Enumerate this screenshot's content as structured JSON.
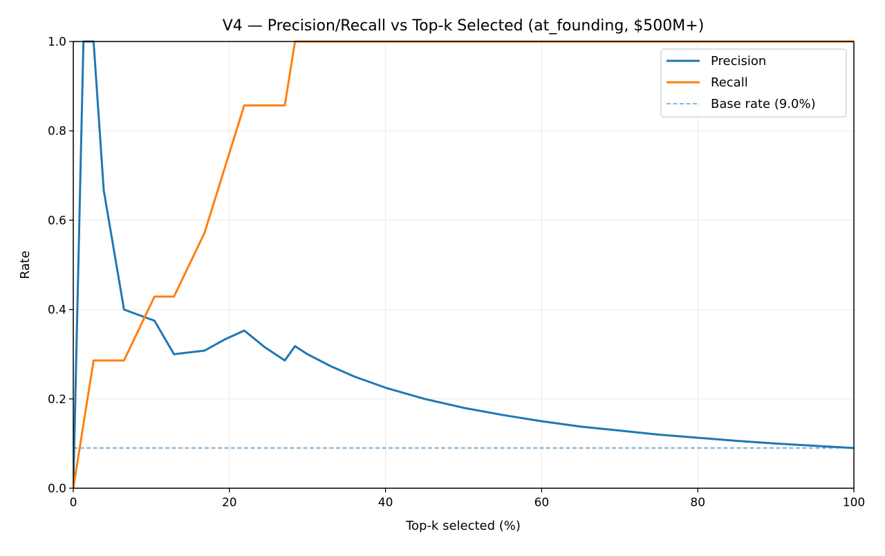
{
  "chart_data": {
    "type": "line",
    "title": "V4 — Precision/Recall vs Top-k Selected (at_founding, $500M+)",
    "xlabel": "Top-k selected (%)",
    "ylabel": "Rate",
    "xlim": [
      0,
      100
    ],
    "ylim": [
      0,
      1.0
    ],
    "xticks": [
      0,
      20,
      40,
      60,
      80,
      100
    ],
    "xtick_labels": [
      "0",
      "20",
      "40",
      "60",
      "80",
      "100"
    ],
    "yticks": [
      0.0,
      0.2,
      0.4,
      0.6,
      0.8,
      1.0
    ],
    "ytick_labels": [
      "0.0",
      "0.2",
      "0.4",
      "0.6",
      "0.8",
      "1.0"
    ],
    "grid": true,
    "legend_position": "upper right",
    "series": [
      {
        "name": "Precision",
        "color": "#1f77b4",
        "style": "solid",
        "x": [
          0,
          1.3,
          2.6,
          3.9,
          6.5,
          10.4,
          12.9,
          16.8,
          19.4,
          21.9,
          24.5,
          27.1,
          28.4,
          30,
          33,
          36,
          40,
          45,
          50,
          55,
          60,
          65,
          70,
          75,
          80,
          85,
          90,
          95,
          100
        ],
        "values": [
          0.0,
          1.0,
          1.0,
          0.667,
          0.4,
          0.375,
          0.3,
          0.308,
          0.333,
          0.353,
          0.316,
          0.286,
          0.318,
          0.3,
          0.273,
          0.25,
          0.225,
          0.2,
          0.18,
          0.164,
          0.15,
          0.138,
          0.129,
          0.12,
          0.113,
          0.106,
          0.1,
          0.095,
          0.09
        ]
      },
      {
        "name": "Recall",
        "color": "#ff7f0e",
        "style": "solid",
        "x": [
          0,
          2.6,
          6.5,
          10.4,
          12.9,
          16.8,
          21.9,
          27.1,
          28.4,
          100
        ],
        "values": [
          0.0,
          0.286,
          0.286,
          0.429,
          0.429,
          0.571,
          0.857,
          0.857,
          1.0,
          1.0
        ]
      },
      {
        "name": "Base rate (9.0%)",
        "color": "#5a9fd4",
        "style": "dashed",
        "x": [
          0,
          100
        ],
        "values": [
          0.09,
          0.09
        ]
      }
    ]
  }
}
